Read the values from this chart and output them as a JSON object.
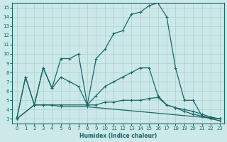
{
  "background_color": "#cce8e8",
  "grid_color": "#aad0d0",
  "line_color": "#1a6868",
  "xlabel": "Humidex (Indice chaleur)",
  "xlim": [
    -0.5,
    23.5
  ],
  "ylim": [
    2.5,
    15.5
  ],
  "xticks": [
    0,
    1,
    2,
    3,
    4,
    5,
    6,
    7,
    8,
    9,
    10,
    11,
    12,
    13,
    14,
    15,
    16,
    17,
    18,
    19,
    20,
    21,
    22,
    23
  ],
  "yticks": [
    3,
    4,
    5,
    6,
    7,
    8,
    9,
    10,
    11,
    12,
    13,
    14,
    15
  ],
  "line1_x": [
    0,
    1,
    2,
    3,
    4,
    5,
    6,
    7,
    8,
    9,
    10,
    11,
    12,
    13,
    14,
    15,
    16,
    17,
    18,
    19,
    20,
    21,
    22,
    23
  ],
  "line1_y": [
    3,
    7.5,
    4.5,
    8.5,
    6.3,
    9.5,
    9.5,
    10.0,
    4.5,
    9.5,
    10.5,
    12.2,
    12.5,
    14.3,
    14.5,
    15.2,
    15.5,
    14.0,
    8.5,
    5.0,
    5.0,
    3.3,
    3.0,
    2.8
  ],
  "line2_x": [
    0,
    1,
    2,
    3,
    4,
    5,
    6,
    7,
    8,
    9,
    10,
    11,
    12,
    13,
    14,
    15,
    16,
    17,
    18,
    19,
    20,
    21,
    22,
    23
  ],
  "line2_y": [
    3,
    7.5,
    4.5,
    8.5,
    6.3,
    7.5,
    7.0,
    6.5,
    4.5,
    5.5,
    6.5,
    7.0,
    7.5,
    8.0,
    8.5,
    8.5,
    5.5,
    4.5,
    4.2,
    3.8,
    3.5,
    3.3,
    3.1,
    3.0
  ],
  "line3_x": [
    0,
    2,
    3,
    4,
    5,
    8,
    9,
    10,
    11,
    12,
    13,
    14,
    15,
    16,
    17,
    18,
    19,
    20,
    21,
    22,
    23
  ],
  "line3_y": [
    3,
    4.5,
    4.5,
    4.5,
    4.5,
    4.5,
    4.5,
    4.8,
    4.8,
    5.0,
    5.0,
    5.0,
    5.2,
    5.3,
    4.5,
    4.2,
    4.0,
    3.8,
    3.5,
    3.2,
    3.0
  ],
  "line4_x": [
    0,
    2,
    3,
    4,
    5,
    8,
    23
  ],
  "line4_y": [
    3,
    4.5,
    4.5,
    4.5,
    4.3,
    4.3,
    3.0
  ]
}
